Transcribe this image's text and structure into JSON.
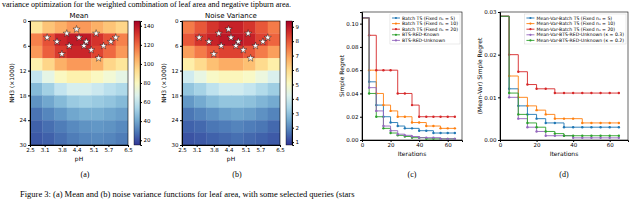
{
  "caption": {
    "above": "variance optimization for the weighted combination of leaf area and negative tipburn area.",
    "below": "Figure 3: (a) Mean and (b) noise variance functions for leaf area, with some selected queries (stars"
  },
  "chart_data": [
    {
      "type": "heatmap",
      "title": "Mean",
      "annotation": "(a)",
      "x_label": "pH",
      "y_label": "NH3 (×1000)",
      "x": [
        2.75,
        3.25,
        3.75,
        4.25,
        4.75,
        5.25,
        5.75,
        6.25
      ],
      "y": [
        1.5,
        4.5,
        7.5,
        10.5,
        13.5,
        16.5,
        19.5,
        22.5,
        25.5,
        28.5
      ],
      "z": [
        [
          90,
          100,
          105,
          110,
          110,
          105,
          100,
          95
        ],
        [
          115,
          125,
          135,
          138,
          138,
          132,
          125,
          115
        ],
        [
          110,
          122,
          130,
          135,
          135,
          128,
          120,
          110
        ],
        [
          85,
          95,
          105,
          110,
          110,
          105,
          95,
          90
        ],
        [
          60,
          70,
          80,
          85,
          85,
          80,
          75,
          70
        ],
        [
          45,
          52,
          60,
          65,
          65,
          62,
          58,
          55
        ],
        [
          35,
          40,
          45,
          50,
          52,
          50,
          48,
          45
        ],
        [
          28,
          32,
          36,
          40,
          42,
          42,
          40,
          38
        ],
        [
          24,
          27,
          30,
          33,
          35,
          36,
          35,
          33
        ],
        [
          22,
          24,
          27,
          30,
          32,
          33,
          32,
          30
        ]
      ],
      "xlim": [
        2.5,
        6.5
      ],
      "ylim": [
        30,
        0
      ],
      "xticks": [
        2.5,
        3.1,
        3.8,
        4.4,
        5.1,
        5.7,
        6.5
      ],
      "yticks": [
        0,
        6,
        12,
        18,
        24,
        30
      ],
      "colorbar": {
        "lim": [
          15,
          145
        ],
        "ticks": [
          20,
          40,
          60,
          80,
          100,
          120,
          140
        ]
      },
      "points": {
        "x": [
          3.2,
          3.6,
          4.0,
          4.1,
          4.5,
          4.8,
          5.0,
          5.2,
          5.5,
          5.8,
          6.0,
          3.8,
          4.4,
          5.3,
          4.7
        ],
        "y": [
          4,
          5,
          3,
          6,
          4,
          5,
          7,
          3,
          6,
          5,
          4,
          8,
          2,
          9,
          6
        ],
        "marker": "star"
      }
    },
    {
      "type": "heatmap",
      "title": "Noise Variance",
      "annotation": "(b)",
      "x_label": "pH",
      "y_label": "NH3 (×1000)",
      "x": [
        2.75,
        3.25,
        3.75,
        4.25,
        4.75,
        5.25,
        5.75,
        6.25
      ],
      "y": [
        1.5,
        4.5,
        7.5,
        10.5,
        13.5,
        16.5,
        19.5,
        22.5,
        25.5,
        28.5
      ],
      "z": [
        [
          7.5,
          8,
          8.5,
          8.8,
          8.8,
          8.5,
          8,
          7.5
        ],
        [
          8,
          8.5,
          8.8,
          9,
          9,
          8.8,
          8.3,
          7.8
        ],
        [
          7,
          7.5,
          8,
          8.3,
          8.3,
          8,
          7.5,
          7
        ],
        [
          5.5,
          6,
          6.5,
          6.8,
          6.8,
          6.5,
          6,
          5.5
        ],
        [
          4,
          4.5,
          5,
          5.2,
          5.2,
          5,
          4.6,
          4.2
        ],
        [
          3,
          3.3,
          3.7,
          4,
          4,
          3.8,
          3.5,
          3.2
        ],
        [
          2.2,
          2.5,
          2.8,
          3,
          3,
          2.9,
          2.7,
          2.5
        ],
        [
          1.7,
          1.9,
          2.1,
          2.3,
          2.4,
          2.3,
          2.1,
          1.9
        ],
        [
          1.4,
          1.5,
          1.7,
          1.8,
          1.9,
          1.8,
          1.7,
          1.5
        ],
        [
          1.2,
          1.3,
          1.4,
          1.5,
          1.6,
          1.5,
          1.4,
          1.3
        ]
      ],
      "xlim": [
        2.5,
        6.5
      ],
      "ylim": [
        30,
        0
      ],
      "xticks": [
        2.5,
        3.1,
        3.8,
        4.4,
        5.1,
        5.7,
        6.5
      ],
      "yticks": [
        0,
        6,
        12,
        18,
        24,
        30
      ],
      "colorbar": {
        "lim": [
          0.8,
          9.4
        ],
        "ticks": [
          1,
          2,
          3,
          4,
          5,
          6,
          7,
          8,
          9
        ]
      },
      "points": {
        "x": [
          3.2,
          3.6,
          4.0,
          4.1,
          4.5,
          4.8,
          5.0,
          5.2,
          5.5,
          5.8,
          6.0,
          3.8,
          4.4,
          5.3,
          4.7
        ],
        "y": [
          4,
          5,
          3,
          6,
          4,
          5,
          7,
          3,
          6,
          5,
          4,
          8,
          2,
          9,
          6
        ],
        "marker": "star"
      }
    },
    {
      "type": "line",
      "annotation": "(c)",
      "x_label": "Iterations",
      "y_label": "Simple Regret",
      "x": [
        0,
        5,
        10,
        15,
        20,
        25,
        30,
        35,
        40,
        45,
        50,
        55,
        60,
        65
      ],
      "series": [
        {
          "name": "Batch TS (Fixed nₛ = 5)",
          "color": "#1f77b4",
          "marker": "o",
          "values": [
            0.105,
            0.05,
            0.03,
            0.02,
            0.015,
            0.012,
            0.01,
            0.01,
            0.008,
            0.008,
            0.006,
            0.006,
            0.006,
            0.006
          ]
        },
        {
          "name": "Batch TS (Fixed nₛ = 10)",
          "color": "#ff7f0e",
          "marker": "o",
          "values": [
            0.105,
            0.06,
            0.04,
            0.03,
            0.025,
            0.02,
            0.02,
            0.015,
            0.015,
            0.012,
            0.012,
            0.01,
            0.01,
            0.01
          ]
        },
        {
          "name": "Batch TS (Fixed nₛ = 20)",
          "color": "#d62728",
          "marker": "o",
          "values": [
            0.105,
            0.09,
            0.06,
            0.06,
            0.06,
            0.04,
            0.04,
            0.03,
            0.02,
            0.02,
            0.02,
            0.02,
            0.02,
            0.02
          ]
        },
        {
          "name": "BTS-RED-Known",
          "color": "#2ca02c",
          "marker": "o",
          "values": [
            0.105,
            0.04,
            0.02,
            0.01,
            0.006,
            0.004,
            0.003,
            0.002,
            0.002,
            0.001,
            0.001,
            0.001,
            0.001,
            0.001
          ]
        },
        {
          "name": "BTS-RED-Unknown",
          "color": "#9467bd",
          "marker": "o",
          "values": [
            0.105,
            0.045,
            0.025,
            0.012,
            0.008,
            0.005,
            0.004,
            0.003,
            0.002,
            0.002,
            0.002,
            0.001,
            0.001,
            0.001
          ]
        }
      ],
      "xlim": [
        0,
        70
      ],
      "ylim": [
        0,
        0.11
      ],
      "xticks": [
        0,
        20,
        40,
        60
      ],
      "yticks": [
        {
          "value": 0,
          "label": "0.00"
        },
        0.02,
        0.04,
        0.06,
        0.08,
        {
          "value": 0.1,
          "label": "0.10"
        }
      ],
      "legend": "upper right"
    },
    {
      "type": "line",
      "annotation": "(d)",
      "x_label": "Iterations",
      "y_label": "(Mean-Var) Simple Regret",
      "x": [
        0,
        5,
        10,
        15,
        20,
        25,
        30,
        35,
        40,
        45,
        50,
        55,
        60,
        65
      ],
      "series": [
        {
          "name": "Mean-Var-Batch TS (Fixed nₛ = 5)",
          "color": "#1f77b4",
          "marker": "o",
          "values": [
            0.029,
            0.012,
            0.008,
            0.006,
            0.005,
            0.004,
            0.004,
            0.003,
            0.003,
            0.003,
            0.003,
            0.003,
            0.003,
            0.003
          ]
        },
        {
          "name": "Mean-Var-Batch TS (Fixed nₛ = 10)",
          "color": "#ff7f0e",
          "marker": "o",
          "values": [
            0.029,
            0.015,
            0.01,
            0.008,
            0.007,
            0.006,
            0.005,
            0.005,
            0.005,
            0.004,
            0.004,
            0.004,
            0.004,
            0.004
          ]
        },
        {
          "name": "Mean-Var-Batch TS (Fixed nₛ = 20)",
          "color": "#d62728",
          "marker": "o",
          "values": [
            0.029,
            0.02,
            0.016,
            0.013,
            0.012,
            0.012,
            0.011,
            0.011,
            0.011,
            0.011,
            0.011,
            0.011,
            0.011,
            0.011
          ]
        },
        {
          "name": "Mean-Var-BTS-RED-Unknown (κ = 0.3)",
          "color": "#9467bd",
          "marker": "o",
          "values": [
            0.029,
            0.01,
            0.005,
            0.003,
            0.002,
            0.001,
            0.001,
            0.001,
            0.0005,
            0.0005,
            0.0005,
            0.0005,
            0.0005,
            0.0005
          ]
        },
        {
          "name": "Mean-Var-BTS-RED-Unknown (κ = 0.2)",
          "color": "#2ca02c",
          "marker": "o",
          "values": [
            0.029,
            0.011,
            0.006,
            0.004,
            0.003,
            0.002,
            0.0015,
            0.001,
            0.001,
            0.001,
            0.001,
            0.001,
            0.001,
            0.001
          ]
        }
      ],
      "xlim": [
        0,
        70
      ],
      "ylim": [
        0,
        0.03
      ],
      "xticks": [
        0,
        20,
        40,
        60
      ],
      "yticks": [
        {
          "value": 0,
          "label": "0.00"
        },
        0.01,
        0.02,
        0.03
      ],
      "legend": "upper right"
    }
  ]
}
